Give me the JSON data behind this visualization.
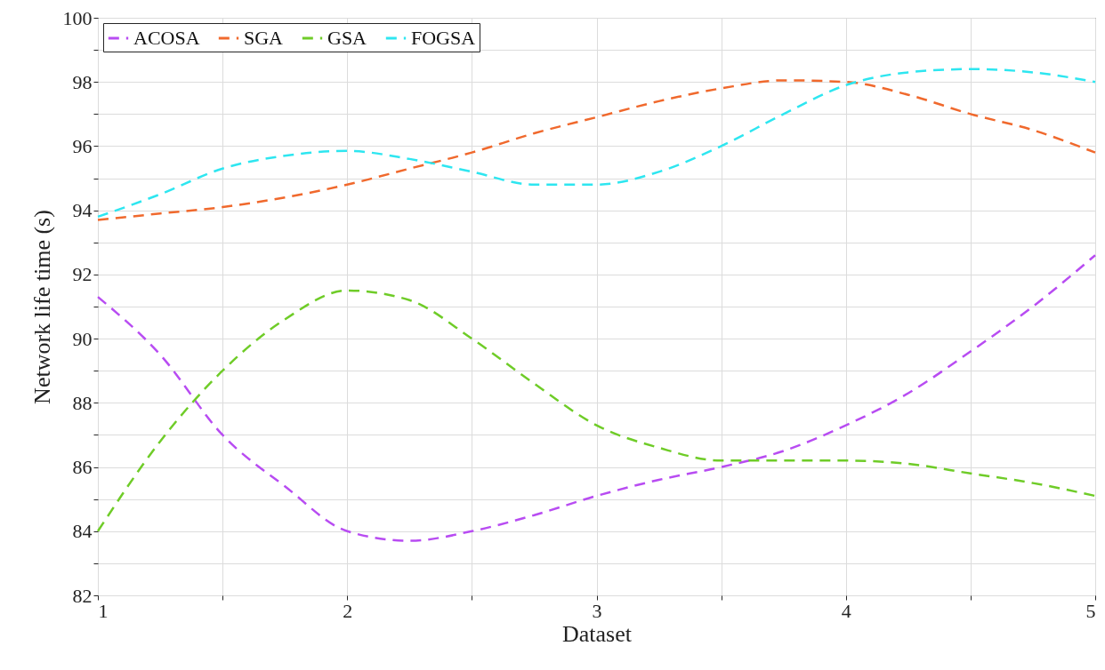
{
  "chart_data": {
    "type": "line",
    "xlabel": "Dataset",
    "ylabel": "Network life time (s)",
    "x": [
      1,
      1.25,
      1.5,
      1.75,
      2,
      2.25,
      2.5,
      2.75,
      3,
      3.25,
      3.5,
      3.75,
      4,
      4.25,
      4.5,
      4.75,
      5
    ],
    "series": [
      {
        "name": "ACOSA",
        "color": "#b84cf2",
        "values": [
          91.3,
          89.5,
          87.0,
          85.4,
          84.0,
          83.7,
          84.0,
          84.5,
          85.1,
          85.6,
          86.0,
          86.5,
          87.3,
          88.3,
          89.6,
          91.0,
          92.6
        ]
      },
      {
        "name": "SGA",
        "color": "#f0692d",
        "values": [
          93.7,
          93.9,
          94.1,
          94.4,
          94.8,
          95.3,
          95.8,
          96.4,
          96.9,
          97.4,
          97.8,
          98.05,
          98.0,
          97.6,
          97.0,
          96.5,
          95.8
        ]
      },
      {
        "name": "GSA",
        "color": "#6fcc28",
        "values": [
          84.0,
          86.8,
          89.0,
          90.6,
          91.5,
          91.2,
          90.0,
          88.6,
          87.3,
          86.6,
          86.2,
          86.2,
          86.2,
          86.1,
          85.8,
          85.5,
          85.1
        ]
      },
      {
        "name": "FOGSA",
        "color": "#2ee6f0",
        "values": [
          93.8,
          94.5,
          95.3,
          95.7,
          95.85,
          95.6,
          95.2,
          94.8,
          94.8,
          95.2,
          96.0,
          97.0,
          97.9,
          98.3,
          98.4,
          98.3,
          98.0
        ]
      }
    ],
    "xlim": [
      1,
      5
    ],
    "xticks": [
      1,
      {
        "value": 1.5,
        "label": null
      },
      2,
      {
        "value": 2.5,
        "label": null
      },
      3,
      {
        "value": 3.5,
        "label": null
      },
      4,
      {
        "value": 4.5,
        "label": null
      },
      5
    ],
    "ylim": [
      82,
      100
    ],
    "yticks": [
      82,
      {
        "value": 83,
        "label": null
      },
      84,
      {
        "value": 85,
        "label": null
      },
      86,
      {
        "value": 87,
        "label": null
      },
      88,
      {
        "value": 89,
        "label": null
      },
      90,
      {
        "value": 91,
        "label": null
      },
      92,
      {
        "value": 93,
        "label": null
      },
      94,
      {
        "value": 95,
        "label": null
      },
      96,
      {
        "value": 97,
        "label": null
      },
      98,
      {
        "value": 99,
        "label": null
      },
      100
    ],
    "grid": true,
    "legend": "top left",
    "line_style": "dashed",
    "marker": "none"
  }
}
